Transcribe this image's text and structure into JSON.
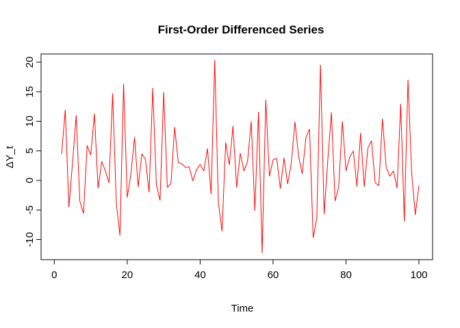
{
  "chart_data": {
    "type": "line",
    "title": "First-Order Differenced Series",
    "xlabel": "Time",
    "ylabel": "ΔY_t",
    "xlim": [
      0,
      100
    ],
    "ylim": [
      -12.5,
      20.5
    ],
    "x_ticks": [
      "0",
      "20",
      "40",
      "60",
      "80",
      "100"
    ],
    "y_ticks": [
      "-10",
      "-5",
      "0",
      "5",
      "10",
      "15",
      "20"
    ],
    "grid": false,
    "legend": "none",
    "series_color": "#ff0000",
    "series": [
      {
        "x": [
          2,
          3,
          4,
          5,
          6,
          7,
          8,
          9,
          10,
          11,
          12,
          13,
          14,
          15,
          16,
          17,
          18,
          19,
          20,
          21,
          22,
          23,
          24,
          25,
          26,
          27,
          28,
          29,
          30,
          31,
          32,
          33,
          34,
          35,
          36,
          37,
          38,
          39,
          40,
          41,
          42,
          43,
          44,
          45,
          46,
          47,
          48,
          49,
          50,
          51,
          52,
          53,
          54,
          55,
          56,
          57,
          58,
          59,
          60,
          61,
          62,
          63,
          64,
          65,
          66,
          67,
          68,
          69,
          70,
          71,
          72,
          73,
          74,
          75,
          76,
          77,
          78,
          79,
          80,
          81,
          82,
          83,
          84,
          85,
          86,
          87,
          88,
          89,
          90,
          91,
          92,
          93,
          94,
          95,
          96,
          97,
          98,
          99,
          100
        ],
        "values": [
          4.5,
          11.9,
          -4.5,
          3.0,
          11.0,
          -3.5,
          -5.6,
          5.9,
          4.3,
          11.3,
          -1.3,
          3.2,
          1.6,
          -0.4,
          14.7,
          -3.8,
          -9.3,
          16.3,
          -2.9,
          1.1,
          7.3,
          -1.1,
          4.5,
          3.5,
          -2.0,
          15.6,
          -0.8,
          -3.4,
          14.9,
          -1.2,
          -0.5,
          9.0,
          3.0,
          2.8,
          2.2,
          2.3,
          -0.1,
          1.8,
          2.7,
          1.6,
          5.4,
          -2.3,
          20.3,
          -3.8,
          -8.6,
          6.4,
          2.6,
          9.2,
          -1.2,
          4.6,
          1.6,
          3.2,
          10.0,
          -5.1,
          11.6,
          -12.3,
          13.6,
          0.7,
          3.5,
          3.7,
          -1.4,
          3.8,
          -0.6,
          3.0,
          9.9,
          4.1,
          1.1,
          7.2,
          8.7,
          -9.7,
          -6.3,
          19.5,
          -5.7,
          3.4,
          11.5,
          -3.5,
          -1.1,
          10.0,
          1.6,
          3.9,
          5.0,
          -1.0,
          8.0,
          -1.1,
          5.5,
          6.7,
          -0.4,
          -0.9,
          10.4,
          2.3,
          0.7,
          1.6,
          -1.3,
          12.9,
          -6.9,
          17.0,
          1.3,
          -5.8,
          -0.9
        ]
      }
    ]
  }
}
